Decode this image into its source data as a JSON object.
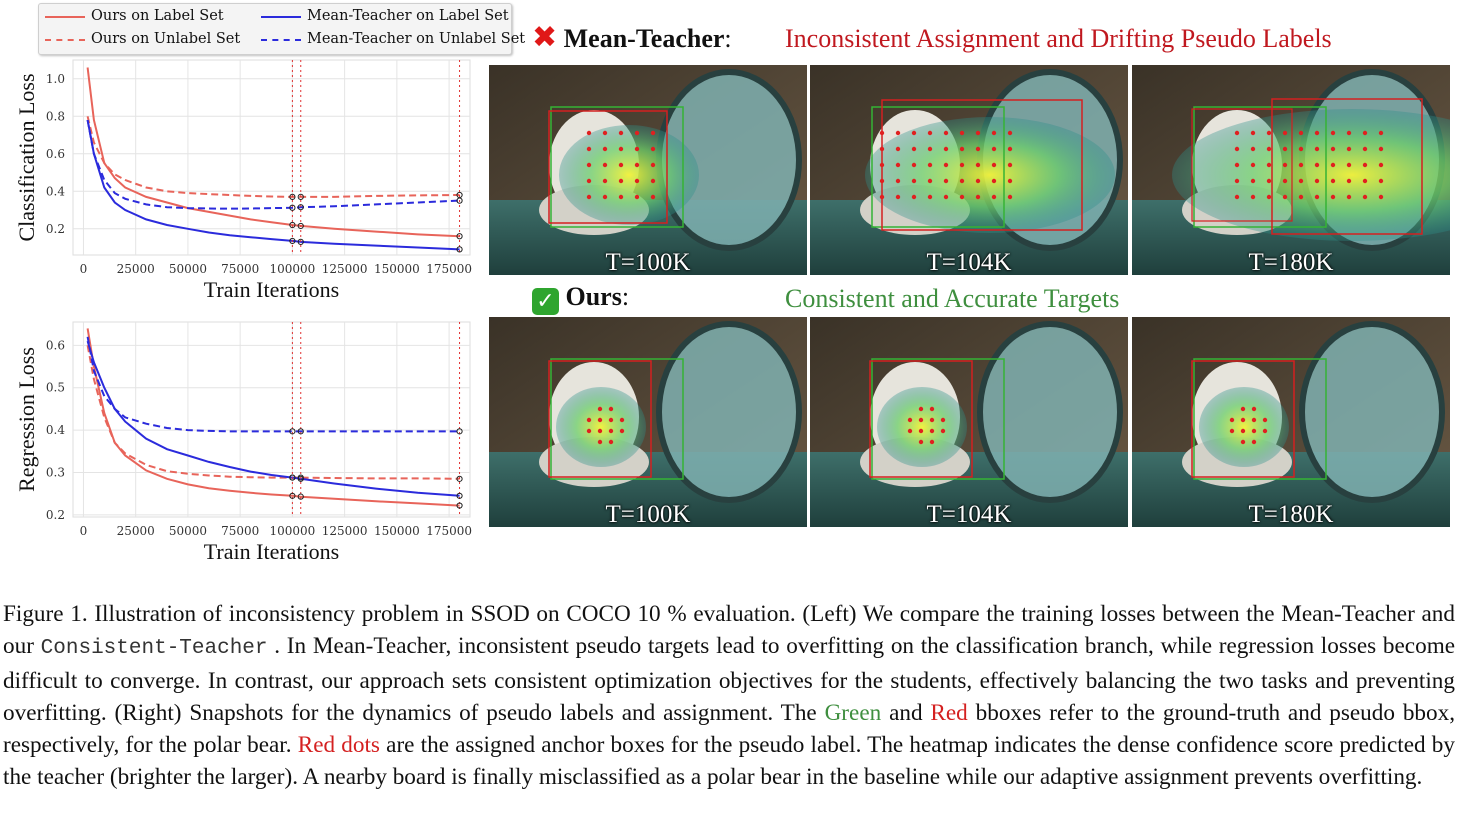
{
  "legend": {
    "items": [
      {
        "label": "Ours on Label Set",
        "color": "#e8645a",
        "dash": "solid"
      },
      {
        "label": "Ours on Unlabel Set",
        "color": "#e8645a",
        "dash": "dashed"
      },
      {
        "label": "Mean-Teacher on Label Set",
        "color": "#2b2bdc",
        "dash": "solid"
      },
      {
        "label": "Mean-Teacher on Unlabel Set",
        "color": "#2b2bdc",
        "dash": "dashed"
      }
    ]
  },
  "chart_data": [
    {
      "type": "line",
      "title": "",
      "xlabel": "Train Iterations",
      "ylabel": "Classification Loss",
      "xlim": [
        -5000,
        185000
      ],
      "ylim": [
        0.06,
        1.1
      ],
      "xticks": [
        0,
        25000,
        50000,
        75000,
        100000,
        125000,
        150000,
        175000
      ],
      "xtick_labels": [
        "0",
        "25000",
        "50000",
        "75000",
        "100000",
        "125000",
        "150000",
        "175000"
      ],
      "yticks": [
        0.2,
        0.4,
        0.6,
        0.8,
        1.0
      ],
      "ytick_labels": [
        "0.2",
        "0.4",
        "0.6",
        "0.8",
        "1.0"
      ],
      "grid": true,
      "vlines": [
        100000,
        104000,
        180000
      ],
      "x": [
        2000,
        5000,
        10000,
        15000,
        20000,
        30000,
        40000,
        50000,
        60000,
        70000,
        80000,
        90000,
        100000,
        104000,
        120000,
        140000,
        160000,
        180000
      ],
      "series": [
        {
          "name": "Ours on Label Set",
          "color": "#e8645a",
          "dash": "solid",
          "values": [
            1.06,
            0.78,
            0.55,
            0.47,
            0.42,
            0.37,
            0.34,
            0.31,
            0.29,
            0.27,
            0.25,
            0.235,
            0.22,
            0.215,
            0.2,
            0.185,
            0.17,
            0.16
          ]
        },
        {
          "name": "Ours on Unlabel Set",
          "color": "#e8645a",
          "dash": "dashed",
          "values": [
            0.8,
            0.66,
            0.55,
            0.49,
            0.46,
            0.42,
            0.4,
            0.39,
            0.385,
            0.38,
            0.375,
            0.372,
            0.37,
            0.37,
            0.37,
            0.375,
            0.378,
            0.38
          ]
        },
        {
          "name": "Mean-Teacher on Label Set",
          "color": "#2b2bdc",
          "dash": "solid",
          "values": [
            0.78,
            0.6,
            0.42,
            0.34,
            0.3,
            0.25,
            0.22,
            0.2,
            0.18,
            0.165,
            0.155,
            0.145,
            0.135,
            0.13,
            0.12,
            0.11,
            0.1,
            0.09
          ]
        },
        {
          "name": "Mean-Teacher on Unlabel Set",
          "color": "#2b2bdc",
          "dash": "dashed",
          "values": [
            0.78,
            0.6,
            0.46,
            0.39,
            0.36,
            0.33,
            0.315,
            0.31,
            0.308,
            0.307,
            0.308,
            0.31,
            0.312,
            0.315,
            0.32,
            0.33,
            0.34,
            0.35
          ]
        }
      ]
    },
    {
      "type": "line",
      "title": "",
      "xlabel": "Train Iterations",
      "ylabel": "Regression Loss",
      "xlim": [
        -5000,
        185000
      ],
      "ylim": [
        0.195,
        0.655
      ],
      "xticks": [
        0,
        25000,
        50000,
        75000,
        100000,
        125000,
        150000,
        175000
      ],
      "xtick_labels": [
        "0",
        "25000",
        "50000",
        "75000",
        "100000",
        "125000",
        "150000",
        "175000"
      ],
      "yticks": [
        0.2,
        0.3,
        0.4,
        0.5,
        0.6
      ],
      "ytick_labels": [
        "0.2",
        "0.3",
        "0.4",
        "0.5",
        "0.6"
      ],
      "grid": true,
      "vlines": [
        100000,
        104000,
        180000
      ],
      "x": [
        2000,
        5000,
        10000,
        15000,
        20000,
        30000,
        40000,
        50000,
        60000,
        70000,
        80000,
        90000,
        100000,
        104000,
        120000,
        140000,
        160000,
        180000
      ],
      "series": [
        {
          "name": "Ours on Label Set",
          "color": "#e8645a",
          "dash": "solid",
          "values": [
            0.64,
            0.55,
            0.44,
            0.37,
            0.34,
            0.305,
            0.285,
            0.272,
            0.263,
            0.257,
            0.252,
            0.248,
            0.245,
            0.243,
            0.238,
            0.232,
            0.227,
            0.222
          ]
        },
        {
          "name": "Ours on Unlabel Set",
          "color": "#e8645a",
          "dash": "dashed",
          "values": [
            0.6,
            0.52,
            0.43,
            0.37,
            0.345,
            0.318,
            0.303,
            0.297,
            0.293,
            0.29,
            0.289,
            0.288,
            0.288,
            0.288,
            0.287,
            0.286,
            0.286,
            0.285
          ]
        },
        {
          "name": "Mean-Teacher on Label Set",
          "color": "#2b2bdc",
          "dash": "solid",
          "values": [
            0.61,
            0.56,
            0.5,
            0.45,
            0.42,
            0.38,
            0.355,
            0.34,
            0.325,
            0.313,
            0.302,
            0.294,
            0.288,
            0.285,
            0.274,
            0.262,
            0.252,
            0.245
          ]
        },
        {
          "name": "Mean-Teacher on Unlabel Set",
          "color": "#2b2bdc",
          "dash": "dashed",
          "values": [
            0.62,
            0.54,
            0.48,
            0.45,
            0.43,
            0.415,
            0.405,
            0.4,
            0.398,
            0.397,
            0.397,
            0.397,
            0.397,
            0.397,
            0.397,
            0.397,
            0.397,
            0.397
          ]
        }
      ]
    }
  ],
  "right_panel": {
    "top_row": {
      "mark": "✖",
      "mark_color": "#e01818",
      "method": "Mean-Teacher",
      "colon": ":",
      "subtitle": "Inconsistent Assignment and Drifting Pseudo Labels",
      "subtitle_color": "#c0181f",
      "snapshots": [
        {
          "label": "T=100K",
          "spread": 0
        },
        {
          "label": "T=104K",
          "spread": 1
        },
        {
          "label": "T=180K",
          "spread": 2
        }
      ]
    },
    "bottom_row": {
      "mark": "✓",
      "mark_color": "#2fa52f",
      "method": "Ours",
      "colon": ":",
      "subtitle": "Consistent and Accurate Targets",
      "subtitle_color": "#3f8f3f",
      "snapshots": [
        {
          "label": "T=100K"
        },
        {
          "label": "T=104K"
        },
        {
          "label": "T=180K"
        }
      ]
    }
  },
  "caption": {
    "p1": "Figure 1. Illustration of inconsistency problem in SSOD on COCO 10 % evaluation. (Left) We compare the training losses between the Mean-Teacher and our",
    "code": "Consistent-Teacher",
    "p2": ". In Mean-Teacher, inconsistent pseudo targets lead to overfitting on the classification branch, while regression losses become difficult to converge. In contrast, our approach sets consistent optimization objectives for the students, effectively balancing the two tasks and preventing overfitting. (Right) Snapshots for the dynamics of pseudo labels and assignment. The",
    "green": "Green",
    "and": "and",
    "red": "Red",
    "p3": "bboxes refer to the ground-truth and pseudo bbox, respectively, for the polar bear.",
    "red_dots": "Red dots",
    "p4": "are the assigned anchor boxes for the pseudo label. The heatmap indicates the dense confidence score predicted by the teacher (brighter the larger). A nearby board is finally misclassified as a polar bear in the baseline while our adaptive assignment prevents overfitting."
  }
}
